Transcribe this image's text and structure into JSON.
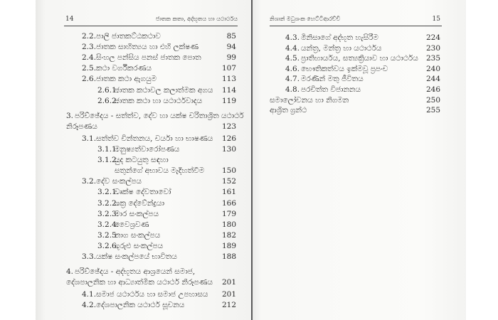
{
  "left_page": {
    "page_number": "14",
    "running_header": "ජාතක කතා, අද්භූතය හා යථාර්ථය",
    "entries": [
      {
        "level": 2,
        "number": "2.2.",
        "title": [
          "පාලි ජාතකට්ඨකථාව"
        ],
        "page": "85"
      },
      {
        "level": 2,
        "number": "2.3.",
        "title": [
          "ජාතක සාහිත්‍යය හා එහි ලක්ෂණ"
        ],
        "page": "94"
      },
      {
        "level": 2,
        "number": "2.4.",
        "title": [
          "සිංහල පන්සිය පනස් ජාතක පොත"
        ],
        "page": "99"
      },
      {
        "level": 2,
        "number": "2.5.",
        "title": [
          "කථා වර්ගීකරණය"
        ],
        "page": "107"
      },
      {
        "level": 2,
        "number": "2.6.",
        "title": [
          "ජාතක කථා ඇගයුම"
        ],
        "page": "113"
      },
      {
        "level": 3,
        "number": "2.6.1.",
        "title": [
          "ජාතක කථාවල කලාත්මක අගය"
        ],
        "page": "114"
      },
      {
        "level": 3,
        "number": "2.6.2.",
        "title": [
          "ජාතක කථා හා යථාර්ථවාදය"
        ],
        "page": "119"
      },
      {
        "level": 1,
        "number": "3.",
        "title": [
          "පරිච්ඡේදය - සත්ත්ව, දේව හා යක්ෂ චරිතාශ්‍රිත යථාර්ථ",
          "නිරූපණය"
        ],
        "page": "123"
      },
      {
        "level": 2,
        "number": "3.1.",
        "title": [
          "සත්ත්ව චින්තනය, චර්යා හා භාෂණය"
        ],
        "page": "126"
      },
      {
        "level": 3,
        "number": "3.1.1.",
        "title": [
          "මනුෂ්‍යත්වාරෝපණය"
        ],
        "page": "130"
      },
      {
        "level": 3,
        "number": "3.1.2.",
        "title": [
          "යුද කටයුතු සඳහා",
          "සතුන්ගේ අභාවය මැදිහත්වීම"
        ],
        "page": "150"
      },
      {
        "level": 2,
        "number": "3.2.",
        "title": [
          "දේව සංකල්පය"
        ],
        "page": "152"
      },
      {
        "level": 3,
        "number": "3.2.1.",
        "title": [
          "වෘක්ෂ දේවතාවෝ"
        ],
        "page": "161"
      },
      {
        "level": 3,
        "number": "3.2.2.",
        "title": [
          "ශක්‍ර දේවේන්ද්‍රයා"
        ],
        "page": "166"
      },
      {
        "level": 3,
        "number": "3.2.3.",
        "title": [
          "මාර සංකල්පය"
        ],
        "page": "179"
      },
      {
        "level": 3,
        "number": "3.2.4.",
        "title": [
          "වෛශ්‍රවණ"
        ],
        "page": "180"
      },
      {
        "level": 3,
        "number": "3.2.5",
        "title": [
          "නාග සංකල්පය"
        ],
        "page": "182"
      },
      {
        "level": 3,
        "number": "3.2.6.",
        "title": [
          "ගුරුළු සංකල්පය"
        ],
        "page": "189"
      },
      {
        "level": 2,
        "number": "3.3.",
        "title": [
          "යක්ෂ සංකල්පයේ භාවිතය"
        ],
        "page": "188"
      },
      {
        "level": 1,
        "number": "4.",
        "title": [
          "පරිච්ඡේදය - අද්භූතය ආශ්‍රයෙන් සමාජ,",
          "දේශපාලනික හා ආධ්‍යාත්මික යථාර්ථ නිරූපණය"
        ],
        "page": "201"
      },
      {
        "level": 2,
        "number": "4.1.",
        "title": [
          "සමාජ යථාර්ථය හා සමාජ උපහාසය"
        ],
        "page": "201"
      },
      {
        "level": 2,
        "number": "4.2.",
        "title": [
          "දේශපාලනික යථාර්ථ සූචනය"
        ],
        "page": "212"
      }
    ]
  },
  "right_page": {
    "page_number": "15",
    "running_header": "නිශාන් මධුශංක හෙට්ටිආරච්චි",
    "entries": [
      {
        "level": 2,
        "number": "4.3.",
        "title": [
          "මිනිසාගේ අද්භූත හැසිරීම"
        ],
        "page": "224"
      },
      {
        "level": 2,
        "number": "4.4.",
        "title": [
          "යන්ත්‍ර, මන්ත්‍ර හා යථාර්ථය"
        ],
        "page": "230"
      },
      {
        "level": 2,
        "number": "4.5.",
        "title": [
          "ප්‍රාතිහාර්යය, සත්‍යක්‍රියාව හා යථාර්ථය"
        ],
        "page": "235"
      },
      {
        "level": 2,
        "number": "4.6.",
        "title": [
          "භෞතිකත්වය ඉක්මවූ ප්‍රපංච"
        ],
        "page": "240"
      },
      {
        "level": 2,
        "number": "4.7.",
        "title": [
          "මරණින් මතු ජීවිතය"
        ],
        "page": "244"
      },
      {
        "level": 2,
        "number": "4.8.",
        "title": [
          "පරචිත්ත විජානනය"
        ],
        "page": "246"
      },
      {
        "level": 0,
        "number": "",
        "title": [
          "සමාලෝචනය හා නිගමන"
        ],
        "page": "250"
      },
      {
        "level": 0,
        "number": "",
        "title": [
          "ආශ්‍රිත ග්‍රන්ථ"
        ],
        "page": "255"
      }
    ]
  }
}
